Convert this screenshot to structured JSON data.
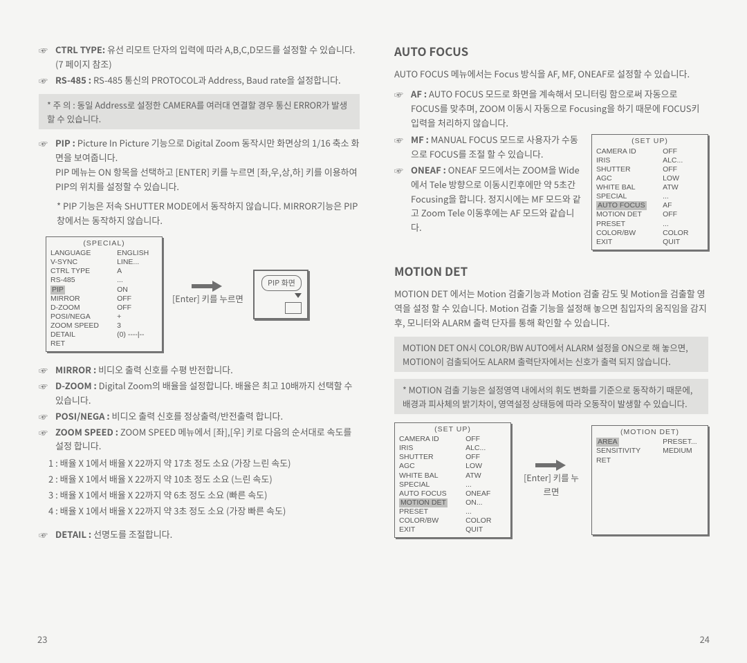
{
  "left": {
    "ctrl_type_label": "CTRL TYPE:",
    "ctrl_type_text": "유선 리모트 단자의 입력에 따라 A,B,C,D모드를 설정할 수 있습니다.(7 페이지 참조)",
    "rs485_label": "RS-485 :",
    "rs485_text": "RS-485 통신의 PROTOCOL과 Address, Baud rate을 설정합니다.",
    "note1": "* 주 의 : 동일 Address로 설정한 CAMERA를 여러대 연결할 경우 통신 ERROR가 발생할 수 있습니다.",
    "pip_label": "PIP :",
    "pip_text": "Picture In Picture 기능으로 Digital Zoom 동작시만 화면상의 1/16 축소 화면을 보여줍니다.\nPIP 메뉴는 ON 항목을 선택하고 [ENTER] 키를 누르면 [좌,우,상,하] 키를 이용하여 PIP의 위치를 설정할 수 있습니다.",
    "star1": "*  PIP 기능은 저속 SHUTTER MODE에서 동작하지 않습니다. MIRROR기능은 PIP 창에서는 동작하지 않습니다.",
    "special_menu_title": "(SPECIAL)",
    "special_menu_rows": [
      [
        "LANGUAGE",
        "ENGLISH"
      ],
      [
        "V-SYNC",
        "LINE..."
      ],
      [
        "CTRL TYPE",
        "A"
      ],
      [
        "RS-485",
        "..."
      ],
      [
        "PIP",
        "ON"
      ],
      [
        "MIRROR",
        "OFF"
      ],
      [
        "D-ZOOM",
        "OFF"
      ],
      [
        "POSI/NEGA",
        "+"
      ],
      [
        "ZOOM SPEED",
        "3"
      ],
      [
        "DETAIL",
        "(0) ----|--"
      ],
      [
        "RET",
        ""
      ]
    ],
    "special_hi": "PIP",
    "enter_caption": "[Enter] 키를 누르면",
    "pip_screen_label": "PIP 화면",
    "mirror_label": "MIRROR :",
    "mirror_text": "비디오 출력 신호를 수평 반전합니다.",
    "dzoom_label": "D-ZOOM :",
    "dzoom_text": "Digital Zoom의 배율을 설정합니다. 배율은 최고 10배까지 선택할 수 있습니다.",
    "posinega_label": "POSI/NEGA :",
    "posinega_text": "비디오 출력 신호를 정상출력/반전출력 합니다.",
    "zoomspeed_label": "ZOOM SPEED :",
    "zoomspeed_text": "ZOOM SPEED 메뉴에서 [좌],[우] 키로 다음의 순서대로 속도를 설정 합니다.",
    "speed_1": "1 : 배율 X 1에서 배율 X 22까지 약 17초 정도 소요 (가장 느린 속도)",
    "speed_2": "2 : 배율 X 1에서 배율 X 22까지 약 10초 정도 소요 (느린 속도)",
    "speed_3": "3 : 배율 X 1에서 배율 X 22까지 약 6초 정도 소요 (빠른 속도)",
    "speed_4": "4 : 배율 X 1에서 배율 X 22까지 약 3초 정도 소요 (가장 빠른 속도)",
    "detail_label": "DETAIL :",
    "detail_text": "선명도를 조절합니다.",
    "page_no": "23"
  },
  "right": {
    "h_af": "AUTO FOCUS",
    "af_intro": "AUTO FOCUS 메뉴에서는 Focus 방식을 AF, MF, ONEAF로 설정할 수 있습니다.",
    "af_label": "AF :",
    "af_text": "AUTO FOCUS 모드로 화면을 계속해서 모니터링 함으로써 자동으로 FOCUS를 맞추며, ZOOM 이동시 자동으로 Focusing을 하기 때문에 FOCUS키 입력을 처리하지 않습니다.",
    "mf_label": "MF :",
    "mf_text": "MANUAL FOCUS 모드로 사용자가 수동으로 FOCUS를 조절 할 수 있습니다.",
    "oneaf_label": "ONEAF :",
    "oneaf_text": "ONEAF 모드에서는 ZOOM을 Wide에서 Tele 방향으로 이동시킨후에만 약 5초간 Focusing을 합니다. 정지시에는 MF 모드와 같고 Zoom Tele 이동후에는 AF 모드와 같습니다.",
    "setup_menu_title": "(SET UP)",
    "setup1_rows": [
      [
        "CAMERA ID",
        "OFF"
      ],
      [
        "IRIS",
        "ALC..."
      ],
      [
        "SHUTTER",
        "OFF"
      ],
      [
        "AGC",
        "LOW"
      ],
      [
        "WHITE BAL",
        "ATW"
      ],
      [
        "SPECIAL",
        "..."
      ],
      [
        "AUTO FOCUS",
        "AF"
      ],
      [
        "MOTION DET",
        "OFF"
      ],
      [
        "PRESET",
        "..."
      ],
      [
        "COLOR/BW",
        "COLOR"
      ],
      [
        "EXIT",
        "QUIT"
      ]
    ],
    "setup1_hi": "AUTO FOCUS",
    "h_md": "MOTION DET",
    "md_intro": "MOTION DET 에서는 Motion 검출기능과 Motion 검출 감도 및 Motion을 검출할 영역을 설정 할 수 있습니다. Motion 검출 기능을 설정해 놓으면 침입자의 움직임을 감지후, 모니터와 ALARM 출력 단자를 통해 확인할 수 있습니다.",
    "md_note1": "MOTION DET ON시 COLOR/BW AUTO에서 ALARM 설정을 ON으로 해 놓으면, MOTION이 검출되어도 ALARM 출력단자에서는 신호가 출력 되지 않습니다.",
    "md_note2": "* MOTION 검출 기능은 설정영역 내에서의 휘도 변화를 기준으로 동작하기 때문에, 배경과 피사체의 밝기차이, 영역설정 상태등에 따라 오동작이 발생할 수 있습니다.",
    "setup2_rows": [
      [
        "CAMERA ID",
        "OFF"
      ],
      [
        "IRIS",
        "ALC..."
      ],
      [
        "SHUTTER",
        "OFF"
      ],
      [
        "AGC",
        "LOW"
      ],
      [
        "WHITE BAL",
        "ATW"
      ],
      [
        "SPECIAL",
        "..."
      ],
      [
        "AUTO FOCUS",
        "ONEAF"
      ],
      [
        "MOTION DET",
        "ON..."
      ],
      [
        "PRESET",
        "..."
      ],
      [
        "COLOR/BW",
        "COLOR"
      ],
      [
        "EXIT",
        "QUIT"
      ]
    ],
    "setup2_hi": "MOTION DET",
    "enter_caption": "[Enter] 키를 누르면",
    "motiondet_menu_title": "(MOTION DET)",
    "motiondet_rows": [
      [
        "AREA",
        "PRESET..."
      ],
      [
        "SENSITIVITY",
        "MEDIUM"
      ],
      [
        "RET",
        ""
      ]
    ],
    "motiondet_hi": "AREA",
    "page_no": "24"
  },
  "style": {
    "bg": "#f5f5f3",
    "text": "#5f5f5f",
    "boxbg": "#e0e0de",
    "line": "#6f6f6f"
  }
}
